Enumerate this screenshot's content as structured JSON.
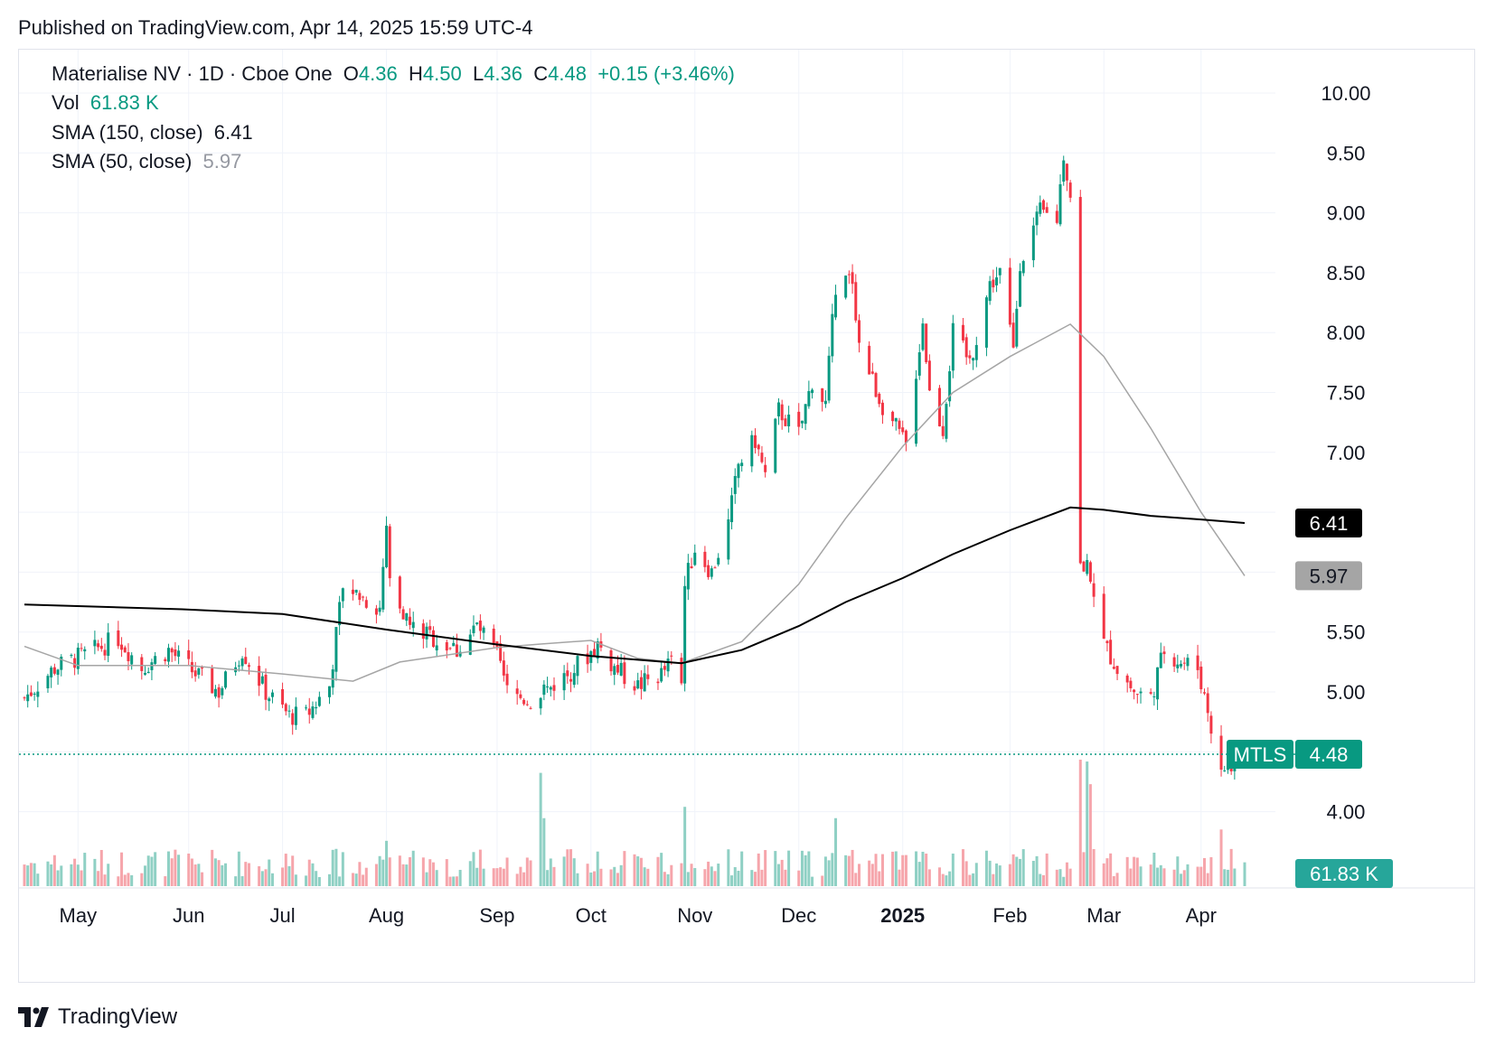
{
  "published": "Published on TradingView.com, Apr 14, 2025 15:59 UTC-4",
  "legend": {
    "symbol": "Materialise NV · 1D · Cboe One",
    "o_label": "O",
    "o_value": "4.36",
    "h_label": "H",
    "h_value": "4.50",
    "l_label": "L",
    "l_value": "4.36",
    "c_label": "C",
    "c_value": "4.48",
    "change": "+0.15 (+3.46%)",
    "vol_label": "Vol",
    "vol_value": "61.83 K",
    "sma150_label": "SMA (150, close)",
    "sma150_value": "6.41",
    "sma50_label": "SMA (50, close)",
    "sma50_value": "5.97"
  },
  "footer": {
    "brand": "TradingView"
  },
  "colors": {
    "up": "#089981",
    "down": "#f23645",
    "up_vol": "#8fd0c4",
    "down_vol": "#f6a5ab",
    "sma150": "#000000",
    "sma50": "#a5a5a5",
    "grid": "#f0f3fa",
    "axis_text": "#131722"
  },
  "chart_data": {
    "type": "candlestick",
    "symbol": "MTLS",
    "interval": "1D",
    "last_price": 4.48,
    "last_volume": "61.83 K",
    "ylim": [
      3.7,
      10.2
    ],
    "y_ticks": [
      4.0,
      4.5,
      5.0,
      5.5,
      6.0,
      6.5,
      7.0,
      7.5,
      8.0,
      8.5,
      9.0,
      9.5,
      10.0
    ],
    "y_tick_labels": [
      "4.00",
      "",
      "5.00",
      "5.50",
      "",
      "",
      "7.00",
      "7.50",
      "8.00",
      "8.50",
      "9.00",
      "9.50",
      "10.00"
    ],
    "x_start": "2024-04-15",
    "x_end": "2025-04-14",
    "x_ticks": [
      {
        "date": "2024-05-01",
        "label": "May",
        "bold": false
      },
      {
        "date": "2024-06-03",
        "label": "Jun",
        "bold": false
      },
      {
        "date": "2024-07-01",
        "label": "Jul",
        "bold": false
      },
      {
        "date": "2024-08-01",
        "label": "Aug",
        "bold": false
      },
      {
        "date": "2024-09-03",
        "label": "Sep",
        "bold": false
      },
      {
        "date": "2024-10-01",
        "label": "Oct",
        "bold": false
      },
      {
        "date": "2024-11-01",
        "label": "Nov",
        "bold": false
      },
      {
        "date": "2024-12-02",
        "label": "Dec",
        "bold": false
      },
      {
        "date": "2025-01-02",
        "label": "2025",
        "bold": true
      },
      {
        "date": "2025-02-03",
        "label": "Feb",
        "bold": false
      },
      {
        "date": "2025-03-03",
        "label": "Mar",
        "bold": false
      },
      {
        "date": "2025-04-01",
        "label": "Apr",
        "bold": false
      }
    ],
    "price_anchors": [
      [
        "2024-04-15",
        4.95
      ],
      [
        "2024-04-24",
        5.2
      ],
      [
        "2024-05-06",
        5.35
      ],
      [
        "2024-05-13",
        5.45
      ],
      [
        "2024-05-20",
        5.2
      ],
      [
        "2024-05-28",
        5.35
      ],
      [
        "2024-06-05",
        5.15
      ],
      [
        "2024-06-12",
        5.0
      ],
      [
        "2024-06-19",
        5.35
      ],
      [
        "2024-06-26",
        5.0
      ],
      [
        "2024-07-03",
        4.8
      ],
      [
        "2024-07-08",
        4.8
      ],
      [
        "2024-07-15",
        5.05
      ],
      [
        "2024-07-19",
        5.9
      ],
      [
        "2024-07-24",
        5.8
      ],
      [
        "2024-07-30",
        5.7
      ],
      [
        "2024-08-01",
        6.4
      ],
      [
        "2024-08-02",
        5.95
      ],
      [
        "2024-08-08",
        5.55
      ],
      [
        "2024-08-15",
        5.45
      ],
      [
        "2024-08-22",
        5.35
      ],
      [
        "2024-08-28",
        5.55
      ],
      [
        "2024-09-03",
        5.3
      ],
      [
        "2024-09-06",
        5.0
      ],
      [
        "2024-09-13",
        4.92
      ],
      [
        "2024-09-17",
        5.0
      ],
      [
        "2024-09-24",
        5.15
      ],
      [
        "2024-09-30",
        5.3
      ],
      [
        "2024-10-03",
        5.4
      ],
      [
        "2024-10-08",
        5.2
      ],
      [
        "2024-10-15",
        5.05
      ],
      [
        "2024-10-22",
        5.15
      ],
      [
        "2024-10-25",
        5.25
      ],
      [
        "2024-10-28",
        5.05
      ],
      [
        "2024-10-29",
        5.9
      ],
      [
        "2024-11-01",
        6.2
      ],
      [
        "2024-11-06",
        6.0
      ],
      [
        "2024-11-11",
        6.4
      ],
      [
        "2024-11-14",
        6.9
      ],
      [
        "2024-11-19",
        7.1
      ],
      [
        "2024-11-22",
        6.8
      ],
      [
        "2024-11-26",
        7.35
      ],
      [
        "2024-12-02",
        7.15
      ],
      [
        "2024-12-06",
        7.6
      ],
      [
        "2024-12-10",
        7.4
      ],
      [
        "2024-12-13",
        8.4
      ],
      [
        "2024-12-18",
        8.45
      ],
      [
        "2024-12-20",
        7.9
      ],
      [
        "2024-12-26",
        7.45
      ],
      [
        "2024-12-31",
        7.2
      ],
      [
        "2025-01-03",
        7.05
      ],
      [
        "2025-01-08",
        8.1
      ],
      [
        "2025-01-10",
        7.5
      ],
      [
        "2025-01-14",
        7.2
      ],
      [
        "2025-01-17",
        8.0
      ],
      [
        "2025-01-22",
        7.75
      ],
      [
        "2025-01-28",
        8.4
      ],
      [
        "2025-01-31",
        8.5
      ],
      [
        "2025-02-04",
        7.85
      ],
      [
        "2025-02-06",
        8.6
      ],
      [
        "2025-02-12",
        9.0
      ],
      [
        "2025-02-17",
        8.95
      ],
      [
        "2025-02-19",
        9.5
      ],
      [
        "2025-02-21",
        9.15
      ],
      [
        "2025-02-24",
        6.05
      ],
      [
        "2025-02-27",
        6.0
      ],
      [
        "2025-03-03",
        5.4
      ],
      [
        "2025-03-07",
        5.2
      ],
      [
        "2025-03-12",
        5.0
      ],
      [
        "2025-03-17",
        4.95
      ],
      [
        "2025-03-21",
        5.35
      ],
      [
        "2025-03-26",
        5.25
      ],
      [
        "2025-03-31",
        5.2
      ],
      [
        "2025-04-03",
        4.85
      ],
      [
        "2025-04-07",
        4.3
      ],
      [
        "2025-04-09",
        4.4
      ],
      [
        "2025-04-11",
        4.33
      ],
      [
        "2025-04-14",
        4.48
      ]
    ],
    "sma150": [
      [
        "2024-04-15",
        5.73
      ],
      [
        "2024-06-01",
        5.69
      ],
      [
        "2024-07-01",
        5.65
      ],
      [
        "2024-08-01",
        5.52
      ],
      [
        "2024-09-02",
        5.4
      ],
      [
        "2024-10-01",
        5.3
      ],
      [
        "2024-10-28",
        5.24
      ],
      [
        "2024-11-15",
        5.35
      ],
      [
        "2024-12-02",
        5.55
      ],
      [
        "2024-12-16",
        5.75
      ],
      [
        "2025-01-02",
        5.95
      ],
      [
        "2025-01-17",
        6.15
      ],
      [
        "2025-02-03",
        6.35
      ],
      [
        "2025-02-21",
        6.54
      ],
      [
        "2025-03-03",
        6.52
      ],
      [
        "2025-03-17",
        6.47
      ],
      [
        "2025-04-01",
        6.44
      ],
      [
        "2025-04-14",
        6.41
      ]
    ],
    "sma50": [
      [
        "2024-04-15",
        5.38
      ],
      [
        "2024-05-01",
        5.22
      ],
      [
        "2024-06-03",
        5.22
      ],
      [
        "2024-07-01",
        5.15
      ],
      [
        "2024-07-22",
        5.09
      ],
      [
        "2024-08-05",
        5.25
      ],
      [
        "2024-09-03",
        5.37
      ],
      [
        "2024-09-16",
        5.4
      ],
      [
        "2024-10-01",
        5.43
      ],
      [
        "2024-10-15",
        5.28
      ],
      [
        "2024-10-28",
        5.24
      ],
      [
        "2024-11-15",
        5.42
      ],
      [
        "2024-12-02",
        5.9
      ],
      [
        "2024-12-16",
        6.45
      ],
      [
        "2025-01-02",
        7.05
      ],
      [
        "2025-01-17",
        7.5
      ],
      [
        "2025-02-03",
        7.8
      ],
      [
        "2025-02-21",
        8.07
      ],
      [
        "2025-03-03",
        7.8
      ],
      [
        "2025-03-17",
        7.2
      ],
      [
        "2025-04-01",
        6.5
      ],
      [
        "2025-04-14",
        5.97
      ]
    ],
    "volume_spikes": [
      [
        "2024-07-19",
        0.3
      ],
      [
        "2024-08-01",
        0.4
      ],
      [
        "2024-09-16",
        1.0
      ],
      [
        "2024-09-17",
        0.6
      ],
      [
        "2024-10-29",
        0.7
      ],
      [
        "2024-12-13",
        0.6
      ],
      [
        "2025-02-24",
        1.9
      ],
      [
        "2025-02-26",
        1.1
      ],
      [
        "2025-02-27",
        0.9
      ],
      [
        "2025-04-07",
        0.5
      ]
    ],
    "price_labels": [
      {
        "text": "6.41",
        "value": 6.41,
        "bg": "#000000",
        "fg": "#ffffff"
      },
      {
        "text": "5.97",
        "value": 5.97,
        "bg": "#a5a5a5",
        "fg": "#131722"
      }
    ],
    "symbol_tag": {
      "text": "MTLS",
      "bg": "#089981",
      "fg": "#ffffff"
    },
    "last_price_label": {
      "text": "4.48",
      "bg": "#089981",
      "fg": "#ffffff"
    },
    "volume_label": {
      "text": "61.83 K",
      "bg": "#26a69a",
      "fg": "#ffffff"
    }
  }
}
